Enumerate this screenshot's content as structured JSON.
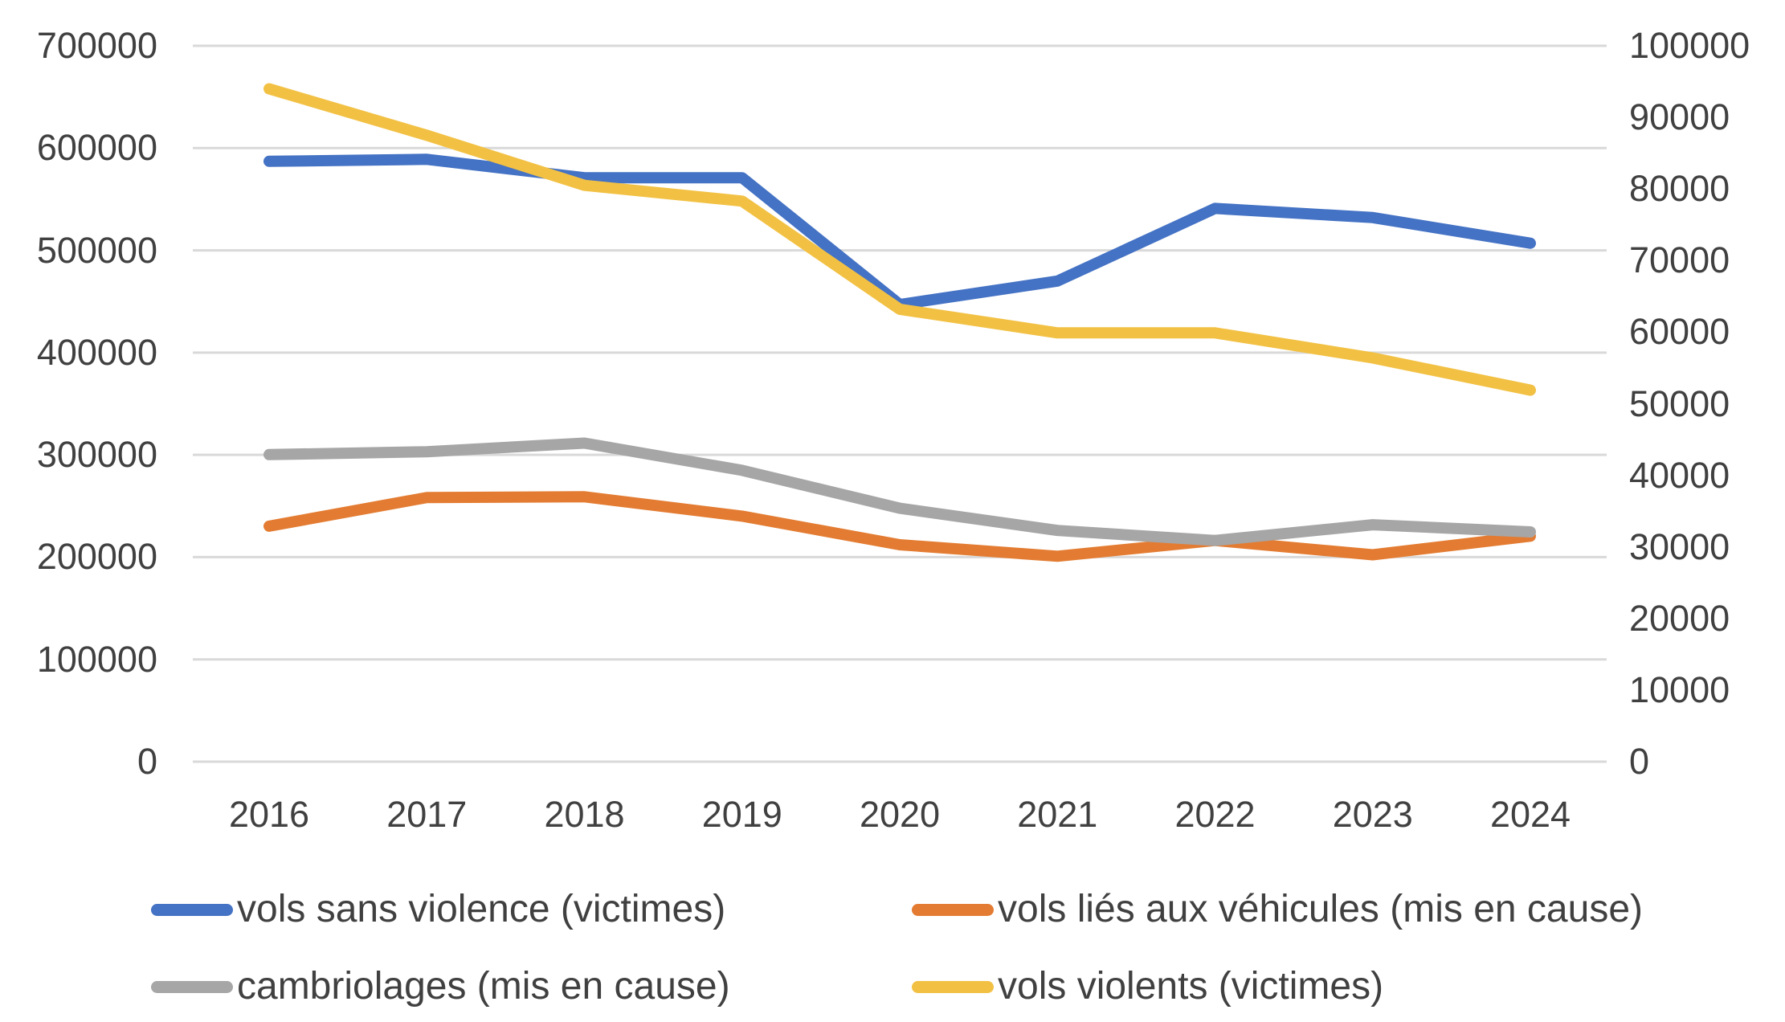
{
  "chart_data": {
    "type": "line",
    "title": "",
    "categories": [
      "2016",
      "2017",
      "2018",
      "2019",
      "2020",
      "2021",
      "2022",
      "2023",
      "2024"
    ],
    "series": [
      {
        "name": "vols sans violence (victimes)",
        "axis": "left",
        "color": "#4472C4",
        "values": [
          587000,
          589000,
          571000,
          571000,
          447000,
          470000,
          541000,
          532000,
          507000
        ]
      },
      {
        "name": "vols liés aux véhicules (mis en cause)",
        "axis": "right",
        "color": "#E37C32",
        "values": [
          32900,
          36900,
          37000,
          34300,
          30300,
          28700,
          30900,
          28900,
          31500
        ]
      },
      {
        "name": "cambriolages (mis en cause)",
        "axis": "right",
        "color": "#A6A6A6",
        "values": [
          42900,
          43300,
          44500,
          40700,
          35400,
          32300,
          30900,
          33100,
          32100
        ]
      },
      {
        "name": "vols violents (victimes)",
        "axis": "right",
        "color": "#F2C144",
        "values": [
          94000,
          87500,
          80500,
          78300,
          63200,
          59900,
          59900,
          56400,
          51900
        ]
      }
    ],
    "left_axis": {
      "min": 0,
      "max": 700000,
      "step": 100000,
      "ticks": [
        "700000",
        "600000",
        "500000",
        "400000",
        "300000",
        "200000",
        "100000",
        "0"
      ]
    },
    "right_axis": {
      "min": 0,
      "max": 100000,
      "step": 10000,
      "ticks": [
        "100000",
        "90000",
        "80000",
        "70000",
        "60000",
        "50000",
        "40000",
        "30000",
        "20000",
        "10000",
        "0"
      ]
    },
    "grid": true,
    "legend_position": "bottom",
    "gridline_color": "#D9D9D9",
    "text_color": "#404040",
    "background_color": "#FFFFFF"
  }
}
